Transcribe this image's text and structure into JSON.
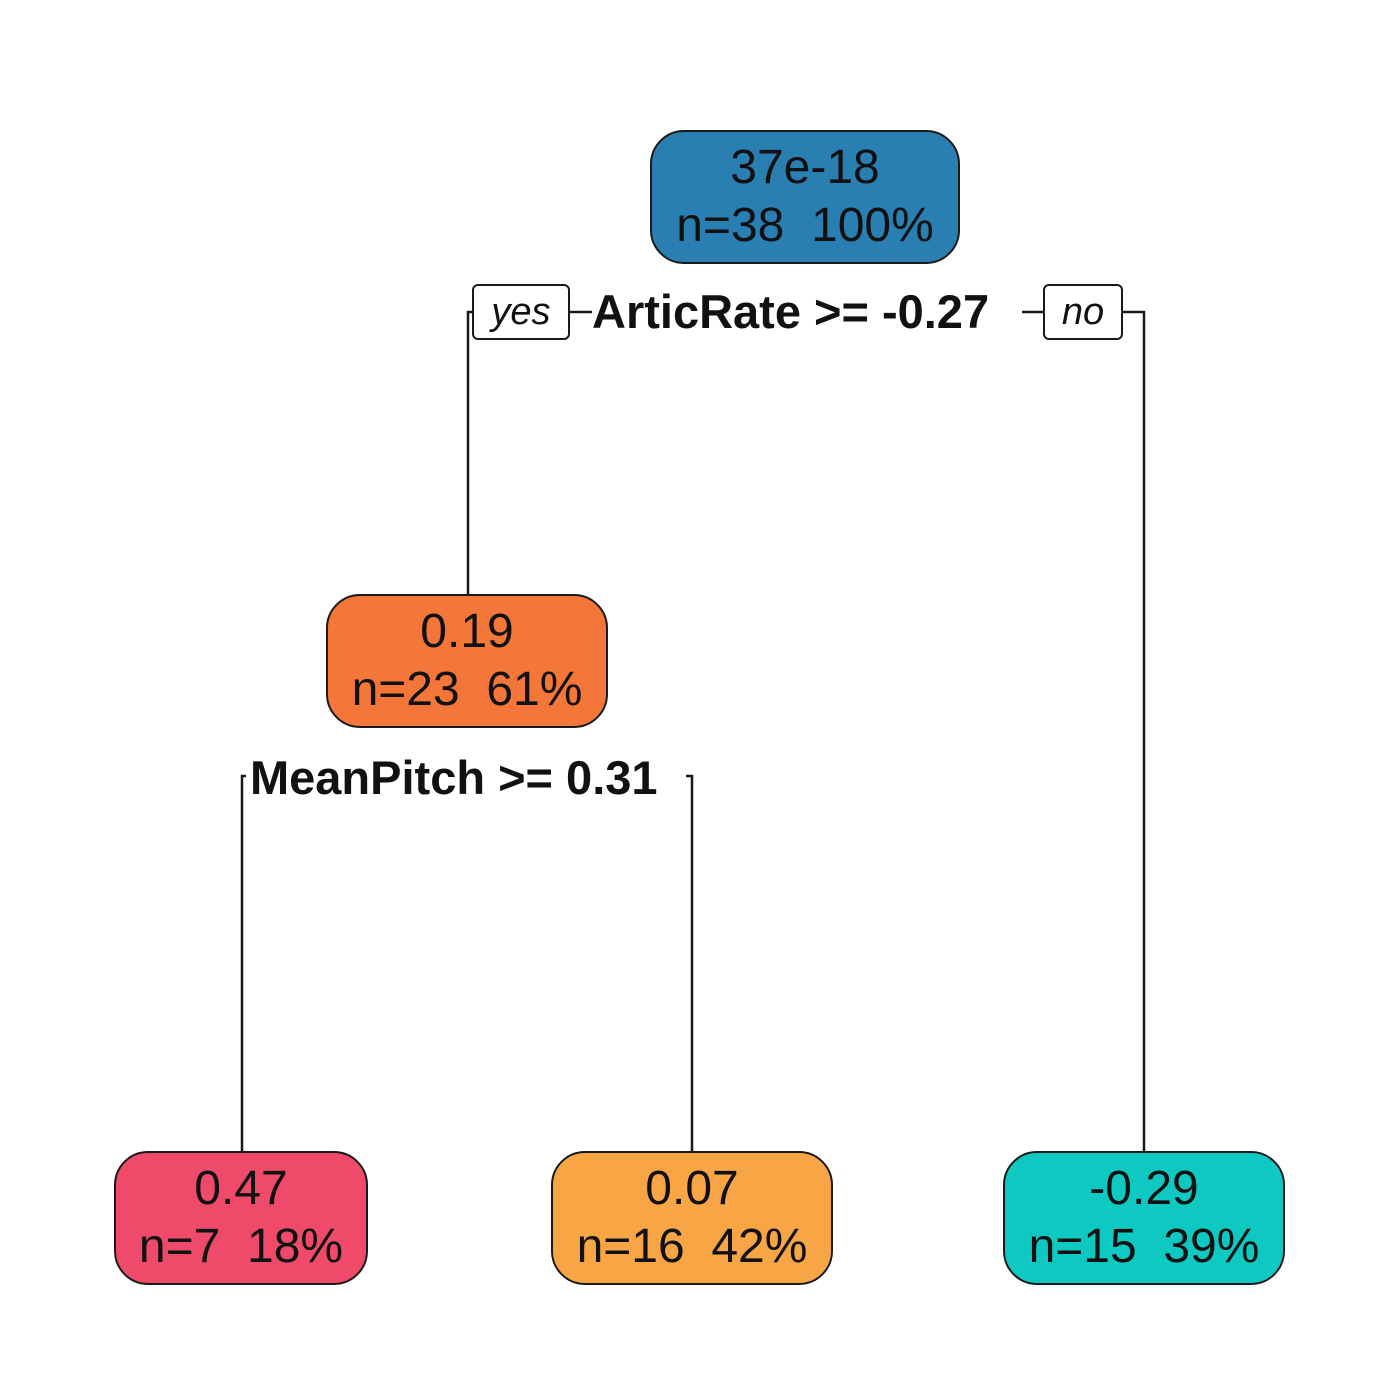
{
  "tree": {
    "root": {
      "value": "37e-18",
      "stats": "n=38  100%",
      "color": "#2a7fb2",
      "split": "ArticRate >= -0.27",
      "left_tag": "yes",
      "right_tag": "no"
    },
    "inner": {
      "value": "0.19",
      "stats": "n=23  61%",
      "color": "#f47638",
      "split": "MeanPitch >= 0.31"
    },
    "leaves": [
      {
        "value": "0.47",
        "stats": "n=7  18%",
        "color": "#ef4a6a"
      },
      {
        "value": "0.07",
        "stats": "n=16  42%",
        "color": "#f8a545"
      },
      {
        "value": "-0.29",
        "stats": "n=15  39%",
        "color": "#0ec9c2"
      }
    ]
  }
}
